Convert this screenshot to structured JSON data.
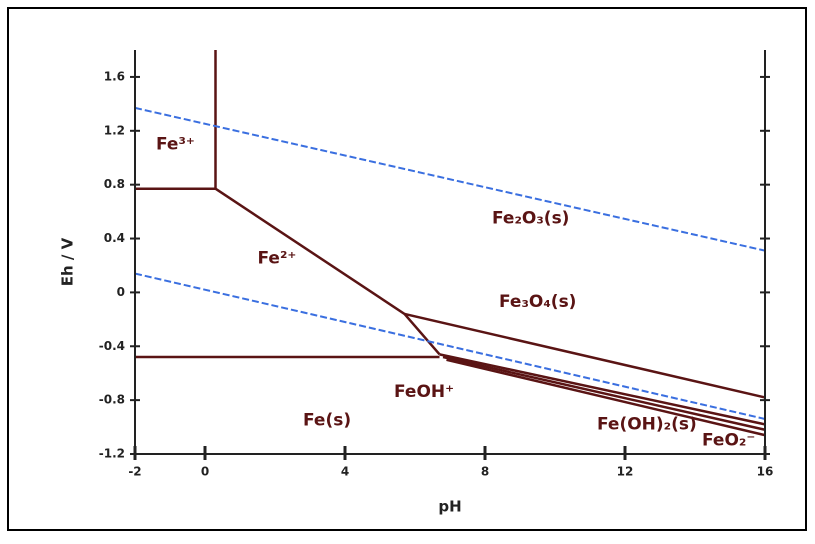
{
  "chart_data": {
    "type": "line",
    "x_label": "pH",
    "y_label": "Eh / V",
    "xlim": [
      -2,
      16
    ],
    "xticks": [
      -2,
      0,
      4,
      8,
      12,
      16
    ],
    "ylim": [
      -1.2,
      1.8
    ],
    "yticks": [
      -1.2,
      -0.8,
      -0.4,
      0,
      0.4,
      0.8,
      1.2,
      1.6
    ],
    "series": [
      {
        "color": "#5a1414",
        "dash": false,
        "x": [
          -2,
          0.3
        ],
        "values": [
          0.77,
          0.77
        ]
      },
      {
        "color": "#5a1414",
        "dash": false,
        "x": [
          0.3,
          0.3
        ],
        "values": [
          0.77,
          1.8
        ]
      },
      {
        "color": "#5a1414",
        "dash": false,
        "x": [
          0.3,
          5.7,
          6.7
        ],
        "values": [
          0.77,
          -0.16,
          -0.46
        ]
      },
      {
        "color": "#5a1414",
        "dash": false,
        "x": [
          -2,
          6.7
        ],
        "values": [
          -0.48,
          -0.48
        ]
      },
      {
        "color": "#5a1414",
        "dash": false,
        "x": [
          5.7,
          16
        ],
        "values": [
          -0.16,
          -0.78
        ]
      },
      {
        "color": "#5a1414",
        "dash": false,
        "x": [
          6.7,
          16
        ],
        "values": [
          -0.46,
          -0.98
        ]
      },
      {
        "color": "#5a1414",
        "dash": false,
        "x": [
          6.8,
          16
        ],
        "values": [
          -0.48,
          -1.02
        ]
      },
      {
        "color": "#5a1414",
        "dash": false,
        "x": [
          6.9,
          16
        ],
        "values": [
          -0.5,
          -1.06
        ]
      },
      {
        "color": "#3a6fe0",
        "dash": true,
        "x": [
          -2,
          16
        ],
        "values": [
          1.37,
          0.31
        ]
      },
      {
        "color": "#3a6fe0",
        "dash": true,
        "x": [
          -2,
          16
        ],
        "values": [
          0.14,
          -0.94
        ]
      }
    ],
    "annotations": [
      {
        "text": "Fe³⁺",
        "x": -1.4,
        "y": 1.1
      },
      {
        "text": "Fe₂O₃(s)",
        "x": 8.2,
        "y": 0.55
      },
      {
        "text": "Fe²⁺",
        "x": 1.5,
        "y": 0.25
      },
      {
        "text": "Fe₃O₄(s)",
        "x": 8.4,
        "y": -0.07
      },
      {
        "text": "FeOH⁺",
        "x": 5.4,
        "y": -0.74
      },
      {
        "text": "Fe(s)",
        "x": 2.8,
        "y": -0.95
      },
      {
        "text": "Fe(OH)₂(s)",
        "x": 11.2,
        "y": -0.98
      },
      {
        "text": "FeO₂⁻",
        "x": 14.2,
        "y": -1.1
      }
    ]
  }
}
